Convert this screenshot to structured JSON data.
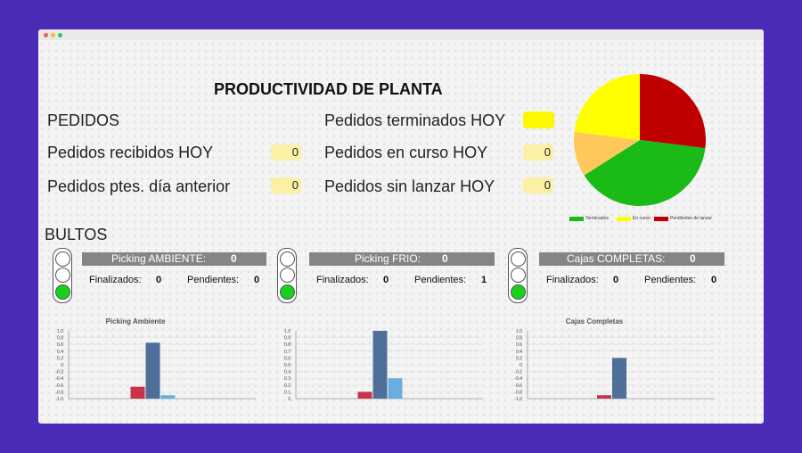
{
  "title": "PRODUCTIVIDAD DE PLANTA",
  "pedidos": {
    "section": "PEDIDOS",
    "recibidos_label": "Pedidos recibidos HOY",
    "recibidos_value": "0",
    "ptes_label": "Pedidos ptes. día anterior",
    "ptes_value": "0",
    "terminados_label": "Pedidos terminados HOY",
    "terminados_value": "",
    "en_curso_label": "Pedidos en curso HOY",
    "en_curso_value": "0",
    "sin_lanzar_label": "Pedidos sin lanzar HOY",
    "sin_lanzar_value": "0"
  },
  "pie": {
    "legend": [
      "Terminados",
      "En curso",
      "Pendientes de lanzar"
    ],
    "colors": [
      "#1aba17",
      "#ffff00",
      "#c00000"
    ],
    "extra_color": "#ffc85a",
    "slices": [
      {
        "name": "Terminados",
        "value": 39,
        "color": "#1aba17"
      },
      {
        "name": "",
        "value": 11,
        "color": "#ffc85a"
      },
      {
        "name": "En curso",
        "value": 23,
        "color": "#ffff00"
      },
      {
        "name": "Pendientes de lanzar",
        "value": 27,
        "color": "#c00000"
      }
    ]
  },
  "bultos": {
    "section": "BULTOS",
    "panels": [
      {
        "name": "Picking AMBIENTE:",
        "total": "0",
        "fin_label": "Finalizados:",
        "fin": "0",
        "pen_label": "Pendientes:",
        "pen": "0"
      },
      {
        "name": "Picking FRIO:",
        "total": "0",
        "fin_label": "Finalizados:",
        "fin": "0",
        "pen_label": "Pendientes:",
        "pen": "1"
      },
      {
        "name": "Cajas COMPLETAS:",
        "total": "0",
        "fin_label": "Finalizados:",
        "fin": "0",
        "pen_label": "Pendientes:",
        "pen": "0"
      }
    ]
  },
  "chart_data": [
    {
      "type": "bar",
      "title": "Picking Ambiente",
      "ylim": [
        -1.0,
        1.0
      ],
      "ticks": [
        "1.0",
        "0.8",
        "0.6",
        "0.4",
        "0.2",
        "0",
        "-0.2",
        "-0.4",
        "-0.6",
        "-0.8",
        "-1.0"
      ],
      "series": [
        {
          "values": [
            -0.65,
            0.65,
            -0.9
          ],
          "colors": [
            "#c8334a",
            "#4e6f9a",
            "#6aaee0"
          ]
        }
      ]
    },
    {
      "type": "bar",
      "title": "",
      "ylim": [
        0,
        1.0
      ],
      "ticks": [
        "1.0",
        "0.9",
        "0.8",
        "0.7",
        "0.6",
        "0.5",
        "0.4",
        "0.3",
        "0.2",
        "0.1",
        "0"
      ],
      "series": [
        {
          "values": [
            0.1,
            1.0,
            0.3
          ],
          "colors": [
            "#c8334a",
            "#4e6f9a",
            "#6aaee0"
          ]
        }
      ]
    },
    {
      "type": "bar",
      "title": "Cajas Completas",
      "ylim": [
        -1.0,
        1.0
      ],
      "ticks": [
        "1.0",
        "0.8",
        "0.6",
        "0.4",
        "0.2",
        "0",
        "-0.2",
        "-0.4",
        "-0.6",
        "-0.8",
        "-1.0"
      ],
      "series": [
        {
          "values": [
            -0.9,
            0.2
          ],
          "colors": [
            "#c8334a",
            "#4e6f9a"
          ]
        }
      ]
    }
  ]
}
